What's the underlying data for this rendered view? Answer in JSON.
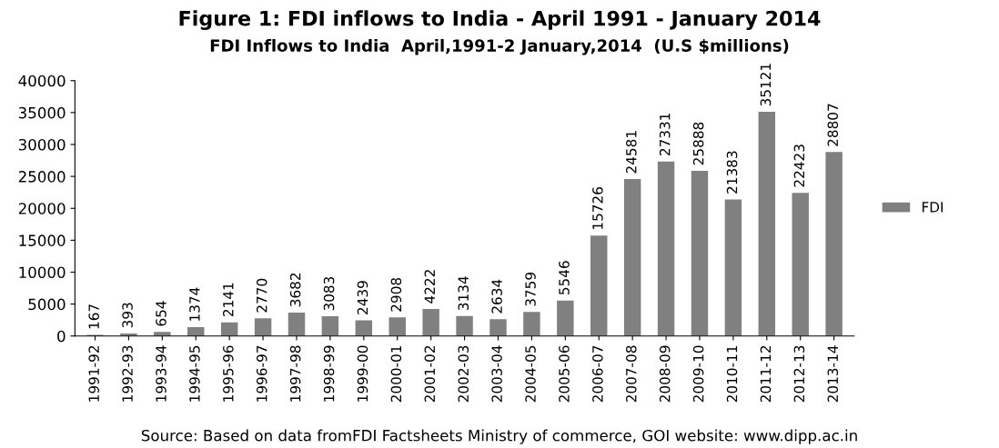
{
  "chart_data": {
    "type": "bar",
    "title": "Figure 1: FDI inflows to India - April 1991 - January 2014",
    "subtitle": "FDI Inflows to India  April,1991-2 January,2014  (U.S $millions)",
    "categories": [
      "1991-92",
      "1992-93",
      "1993-94",
      "1994-95",
      "1995-96",
      "1996-97",
      "1997-98",
      "1998-99",
      "1999-00",
      "2000-01",
      "2001-02",
      "2002-03",
      "2003-04",
      "2004-05",
      "2005-06",
      "2006-07",
      "2007-08",
      "2008-09",
      "2009-10",
      "2010-11",
      "2011-12",
      "2012-13",
      "2013-14"
    ],
    "series": [
      {
        "name": "FDI",
        "color": "#808080",
        "values": [
          167,
          393,
          654,
          1374,
          2141,
          2770,
          3682,
          3083,
          2439,
          2908,
          4222,
          3134,
          2634,
          3759,
          5546,
          15726,
          24581,
          27331,
          25888,
          21383,
          35121,
          22423,
          28807
        ]
      }
    ],
    "ylim": [
      0,
      40000
    ],
    "yticks": [
      0,
      5000,
      10000,
      15000,
      20000,
      25000,
      30000,
      35000,
      40000
    ],
    "grid": false,
    "legend": "right",
    "data_labels": true,
    "annotations": [
      "Source: Based on data fromFDI Factsheets Ministry of commerce, GOI website: www.dipp.ac.in"
    ]
  }
}
